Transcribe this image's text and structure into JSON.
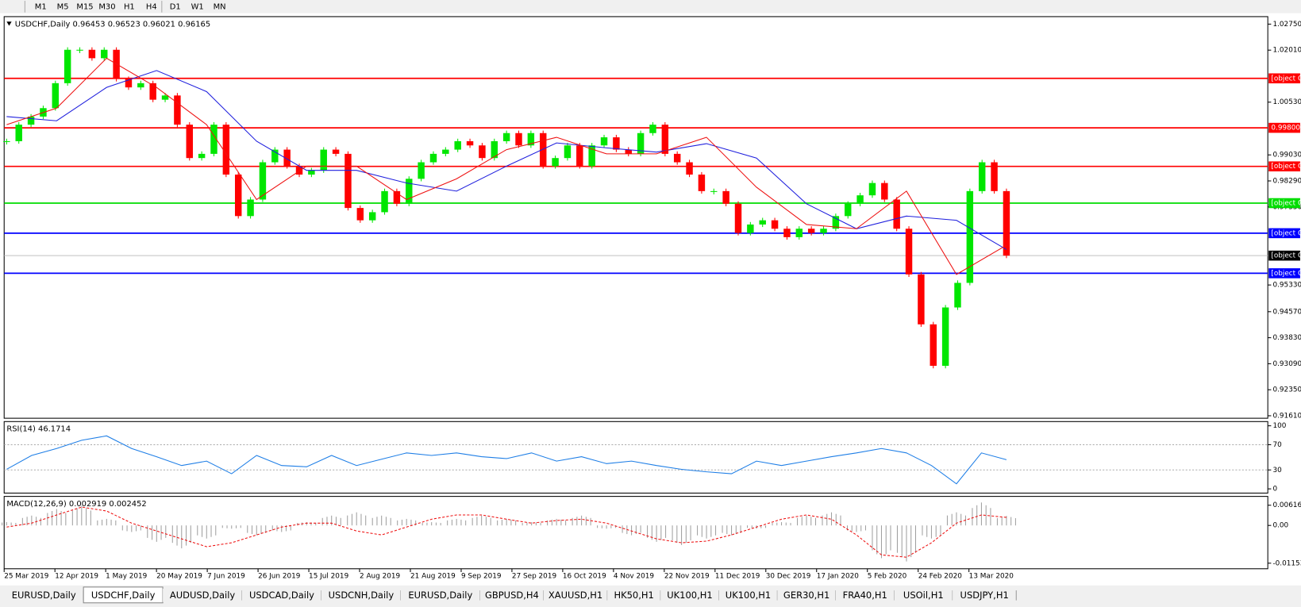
{
  "toolbar": {
    "timeframes": [
      "M1",
      "M5",
      "M15",
      "M30",
      "H1",
      "H4",
      "D1",
      "W1",
      "MN"
    ]
  },
  "chart_data": [
    {
      "type": "candlestick",
      "title": "USDCHF,Daily  0.96453 0.96523 0.96021 0.96165",
      "up_color": "#00e600",
      "down_color": "#ff0000",
      "closes": [
        0.9942,
        0.9989,
        1.0012,
        1.0036,
        1.0107,
        1.0202,
        1.0202,
        1.0178,
        1.0202,
        1.0119,
        1.0095,
        1.0107,
        1.006,
        1.0072,
        0.9989,
        0.9894,
        0.9906,
        0.9989,
        0.9847,
        0.9729,
        0.9776,
        0.9882,
        0.9918,
        0.9871,
        0.9847,
        0.9859,
        0.9918,
        0.9906,
        0.9752,
        0.9717,
        0.974,
        0.98,
        0.9764,
        0.9835,
        0.9882,
        0.9906,
        0.9918,
        0.9942,
        0.993,
        0.9894,
        0.9942,
        0.9965,
        0.993,
        0.9965,
        0.9871,
        0.9894,
        0.993,
        0.9871,
        0.993,
        0.9953,
        0.9918,
        0.9906,
        0.9965,
        0.9989,
        0.9906,
        0.9882,
        0.9847,
        0.98,
        0.98,
        0.9764,
        0.9681,
        0.9705,
        0.9717,
        0.9693,
        0.9669,
        0.9693,
        0.9681,
        0.9693,
        0.9729,
        0.9764,
        0.9788,
        0.9823,
        0.9776,
        0.9693,
        0.9563,
        0.9421,
        0.9303,
        0.9469,
        0.9539,
        0.98,
        0.9882,
        0.98,
        0.96165
      ],
      "lines": [
        {
          "color": "#1f1fdd",
          "values": [
            1.0012,
            1.0,
            1.0095,
            1.0143,
            1.0083,
            0.9942,
            0.9859,
            0.9859,
            0.9823,
            0.98,
            0.9871,
            0.9937,
            0.9923,
            0.9911,
            0.9935,
            0.9894,
            0.9764,
            0.9693,
            0.9729,
            0.9717,
            0.9634
          ]
        },
        {
          "color": "#ee1111",
          "values": [
            0.9989,
            1.0036,
            1.0178,
            1.0095,
            0.9989,
            0.9776,
            0.9871,
            0.9871,
            0.9776,
            0.9835,
            0.9918,
            0.9953,
            0.9906,
            0.9906,
            0.9953,
            0.9811,
            0.9705,
            0.9693,
            0.98,
            0.9563,
            0.9646
          ]
        }
      ],
      "levels": [
        {
          "value": 1.01207,
          "color": "#ff0000"
        },
        {
          "value": 0.998,
          "label": "0.99800",
          "color": "#ff0000"
        },
        {
          "value": 0.98703,
          "color": "#ff0000"
        },
        {
          "value": 0.97658,
          "color": "#00dd00"
        },
        {
          "value": 0.96803,
          "color": "#0000ff"
        },
        {
          "value": 0.96165,
          "color": "#000000"
        },
        {
          "value": 0.95663,
          "color": "#0000ff"
        }
      ],
      "ylim": [
        0.91539,
        1.02963
      ],
      "yticks": [
        {
          "value": 1.0275,
          "label": "1.02750"
        },
        {
          "value": 1.0201,
          "label": "1.02010"
        },
        {
          "value": 1.0053,
          "label": "1.00530"
        },
        {
          "value": 0.9903,
          "label": "0.99030"
        },
        {
          "value": 0.9829,
          "label": "0.98290"
        },
        {
          "value": 0.9755,
          "label": "0.97550"
        },
        {
          "value": 0.9533,
          "label": "0.95330"
        },
        {
          "value": 0.9457,
          "label": "0.94570"
        },
        {
          "value": 0.9383,
          "label": "0.93830"
        },
        {
          "value": 0.9309,
          "label": "0.93090"
        },
        {
          "value": 0.9235,
          "label": "0.92350"
        },
        {
          "value": 0.9161,
          "label": "0.91610"
        }
      ],
      "xticks": [
        "25 Mar 2019",
        "12 Apr 2019",
        "1 May 2019",
        "20 May 2019",
        "7 Jun 2019",
        "26 Jun 2019",
        "15 Jul 2019",
        "2 Aug 2019",
        "21 Aug 2019",
        "9 Sep 2019",
        "27 Sep 2019",
        "16 Oct 2019",
        "4 Nov 2019",
        "22 Nov 2019",
        "11 Dec 2019",
        "30 Dec 2019",
        "17 Jan 2020",
        "5 Feb 2020",
        "24 Feb 2020",
        "13 Mar 2020"
      ]
    },
    {
      "type": "line",
      "title": "RSI(14) 46.1714",
      "color": "#1e7ee6",
      "values": [
        31,
        53,
        64,
        77,
        84,
        64,
        51,
        37,
        44,
        24,
        53,
        37,
        35,
        53,
        37,
        47,
        57,
        53,
        57,
        51,
        48,
        57,
        44,
        51,
        40,
        44,
        37,
        31,
        27,
        24,
        44,
        37,
        44,
        51,
        57,
        64,
        57,
        37,
        8,
        57,
        46.1714
      ],
      "levels": [
        70,
        30
      ],
      "ylim": [
        -6.7,
        106.7
      ],
      "yticks": [
        100,
        70,
        30,
        0
      ]
    },
    {
      "type": "macd",
      "title": "MACD(12,26,9) 0.002919 0.002452",
      "histogram_color": "#a0a0a0",
      "signal_color": "#ee1111",
      "histogram": [
        0.001,
        0.003,
        0.005,
        0.006,
        0.002,
        -0.002,
        -0.005,
        -0.007,
        -0.004,
        -0.001,
        -0.003,
        -0.002,
        0.001,
        0.003,
        0.004,
        0.003,
        0.002,
        0.001,
        0.002,
        0.003,
        0.002,
        0.001,
        0.002,
        0.003,
        -0.001,
        -0.003,
        -0.005,
        -0.006,
        -0.004,
        -0.003,
        -0.001,
        0.001,
        0.003,
        0.004,
        -0.002,
        -0.01,
        -0.011,
        -0.004,
        0.004,
        0.007,
        0.002919
      ],
      "signal": [
        -0.0005,
        0.0007,
        0.0032,
        0.0056,
        0.0044,
        0.0007,
        -0.0017,
        -0.0041,
        -0.0065,
        -0.0053,
        -0.0029,
        -0.0005,
        0.0007,
        0.0007,
        -0.0017,
        -0.0029,
        -0.0005,
        0.0019,
        0.0032,
        0.0032,
        0.0019,
        0.0007,
        0.0015,
        0.0019,
        0.0007,
        -0.0017,
        -0.0041,
        -0.0053,
        -0.0048,
        -0.0029,
        -0.0005,
        0.0019,
        0.0032,
        0.0019,
        -0.0029,
        -0.009,
        -0.0097,
        -0.0053,
        0.0007,
        0.0032,
        0.002452
      ],
      "ylim": [
        -0.01323,
        0.00886
      ],
      "yticks": [
        0.006167,
        {
          "value": 0,
          "label": "0.00"
        },
        -0.01153
      ]
    }
  ],
  "tabs": {
    "items": [
      "EURUSD,Daily",
      "USDCHF,Daily",
      "AUDUSD,Daily",
      "USDCAD,Daily",
      "USDCNH,Daily",
      "EURUSD,Daily",
      "GBPUSD,H4",
      "XAUUSD,H1",
      "HK50,H1",
      "UK100,H1",
      "UK100,H1",
      "GER30,H1",
      "FRA40,H1",
      "USOil,H1",
      "USDJPY,H1"
    ],
    "active": 1
  }
}
